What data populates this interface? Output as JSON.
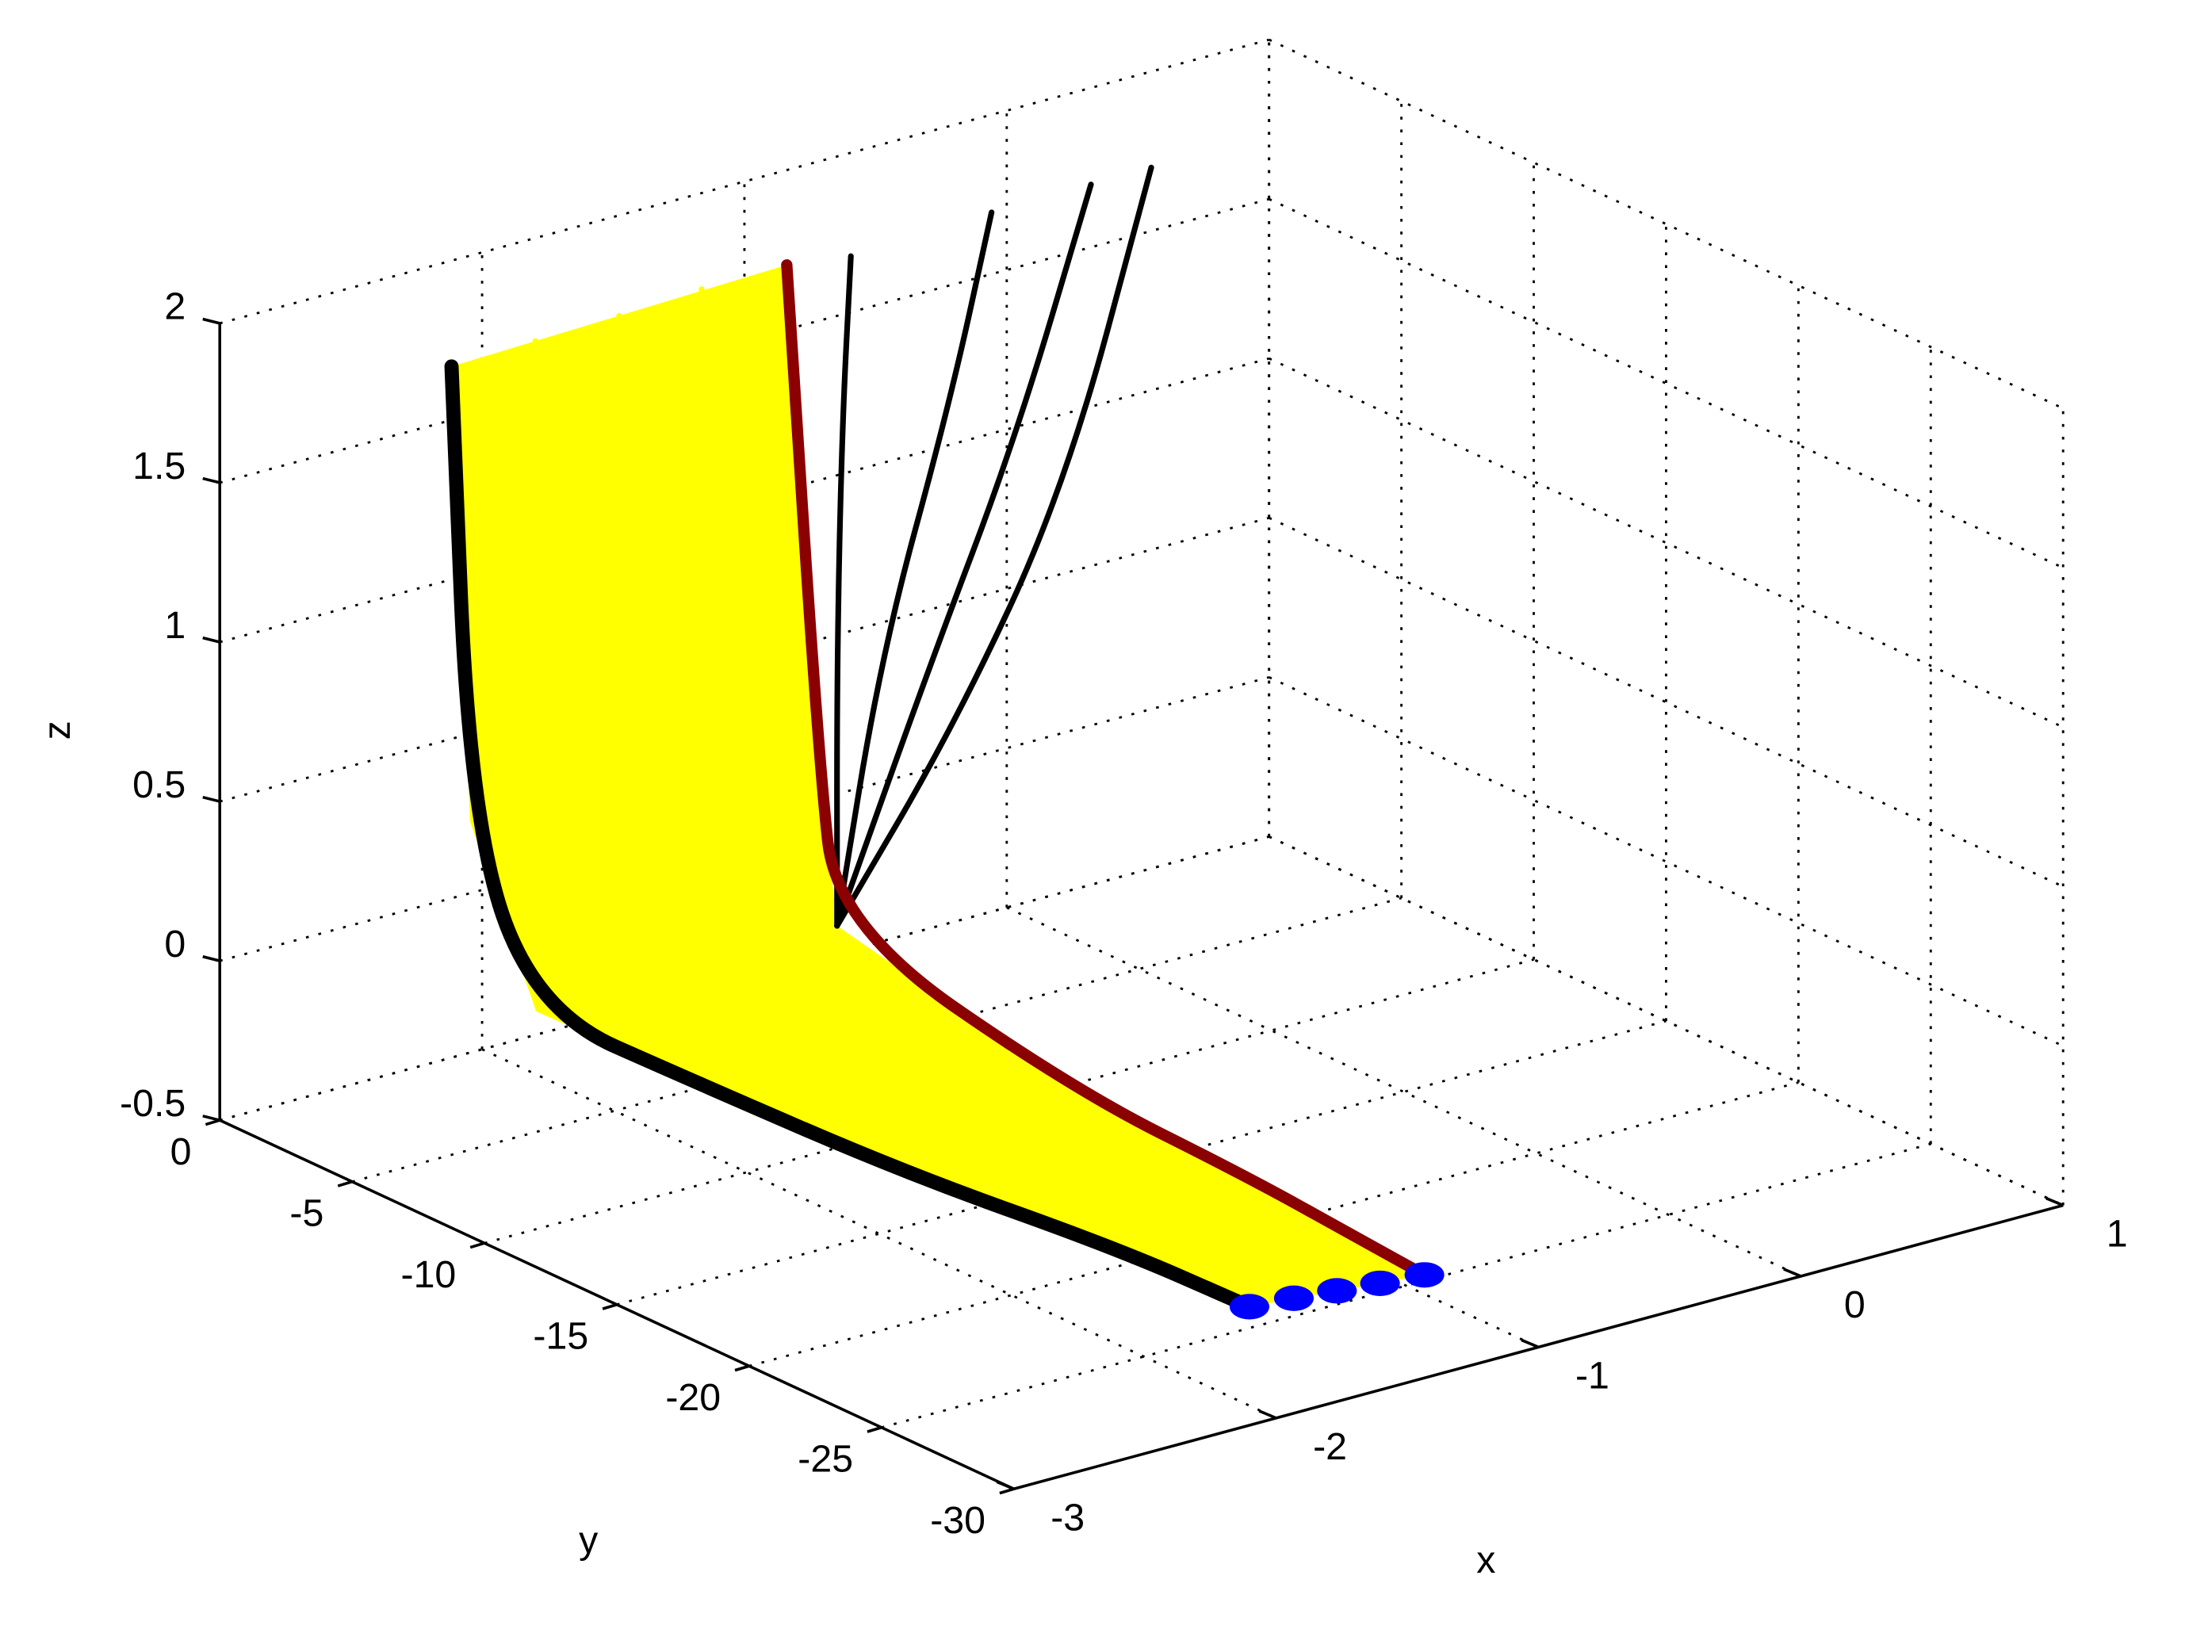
{
  "chart_data": {
    "type": "line3d",
    "xlabel": "x",
    "ylabel": "y",
    "zlabel": "z",
    "xlim": [
      -3,
      1
    ],
    "ylim": [
      -30,
      0
    ],
    "zlim": [
      -0.5,
      2
    ],
    "xticks": [
      -3,
      -2,
      -1,
      0,
      1
    ],
    "yticks": [
      -30,
      -25,
      -20,
      -15,
      -10,
      -5,
      0
    ],
    "zticks": [
      -0.5,
      0,
      0.5,
      1,
      1.5,
      2
    ],
    "grid": true,
    "surface_color": "#ffff00",
    "series": [
      {
        "color": "#000000",
        "marker_end": "#0000ff",
        "x": [
          -2.5,
          -2.5,
          -2.5,
          -2.4,
          -2.2,
          -2.0,
          -1.9
        ],
        "y": [
          -3.8,
          -4.5,
          -7,
          -12,
          -18,
          -24,
          -28
        ],
        "z": [
          1.9,
          0.5,
          0.0,
          -0.05,
          -0.15,
          -0.2,
          -0.25
        ]
      },
      {
        "color": "#ffff00",
        "marker_end": "#0000ff",
        "x": [
          -2.125,
          -2.125,
          -2.125,
          -2.04,
          -1.88,
          -1.73,
          -1.65
        ],
        "y": [
          -3.25,
          -4.075,
          -6.125,
          -12,
          -18,
          -23.5,
          -27.2
        ],
        "z": [
          1.875,
          0.45,
          -0.05,
          -0.14,
          -0.23,
          -0.27,
          -0.31
        ]
      },
      {
        "color": "#ffff00",
        "marker_end": "#0000ff",
        "x": [
          -1.75,
          -1.75,
          -1.75,
          -1.675,
          -1.55,
          -1.45,
          -1.4
        ],
        "y": [
          -2.7,
          -3.65,
          -5.25,
          -12,
          -18,
          -23,
          -26.35
        ],
        "z": [
          1.85,
          0.4,
          -0.1,
          -0.225,
          -0.3,
          -0.34,
          -0.375
        ]
      },
      {
        "color": "#ffff00",
        "marker_end": "#0000ff",
        "x": [
          -1.38,
          -1.38,
          -1.38,
          -1.31,
          -1.23,
          -1.18,
          -1.15
        ],
        "y": [
          -2.15,
          -3.23,
          -4.38,
          -12,
          -18,
          -22.5,
          -25.5
        ],
        "z": [
          1.83,
          0.35,
          -0.15,
          -0.31,
          -0.38,
          -0.41,
          -0.44
        ]
      },
      {
        "color": "#8b0000",
        "marker_end": "#0000ff",
        "x": [
          -1,
          -1,
          -1,
          -0.95,
          -0.9,
          -0.9,
          -0.9
        ],
        "y": [
          -1.6,
          -2.8,
          -3.5,
          -12,
          -18,
          -22,
          -24.7
        ],
        "z": [
          1.8,
          0.3,
          -0.2,
          -0.4,
          -0.45,
          -0.48,
          -0.5
        ]
      },
      {
        "color": "#000000",
        "x": [
          -1,
          -0.5,
          0,
          0.45
        ],
        "y": [
          -3.5,
          -3,
          -2.2,
          -1
        ],
        "z": [
          -0.2,
          0.3,
          0.9,
          1.76
        ]
      },
      {
        "color": "#000000",
        "x": [
          -1,
          -0.6,
          -0.2,
          0.2
        ],
        "y": [
          -3.5,
          -3,
          -2.3,
          -1.2
        ],
        "z": [
          -0.2,
          0.5,
          1.1,
          1.77
        ]
      },
      {
        "color": "#000000",
        "x": [
          -1,
          -0.8,
          -0.5,
          -0.3
        ],
        "y": [
          -3.5,
          -3.2,
          -2.8,
          -2.4
        ],
        "z": [
          -0.2,
          0.6,
          1.3,
          1.84
        ]
      },
      {
        "color": "#000000",
        "x": [
          -1,
          -0.95,
          -0.88,
          -0.8
        ],
        "y": [
          -3.5,
          -3,
          -2.5,
          -2.04
        ],
        "z": [
          -0.2,
          0.6,
          1.3,
          1.8
        ]
      }
    ]
  }
}
